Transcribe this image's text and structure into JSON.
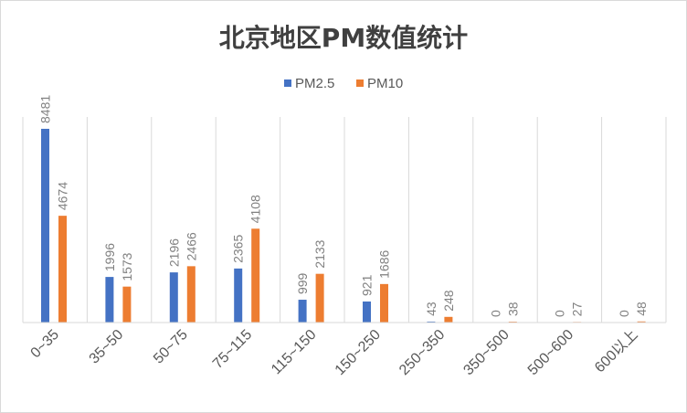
{
  "chart_data": {
    "type": "bar",
    "title": "北京地区PM数值统计",
    "categories": [
      "0~35",
      "35~50",
      "50~75",
      "75~115",
      "115~150",
      "150~250",
      "250~350",
      "350~500",
      "500~600",
      "600以上"
    ],
    "series": [
      {
        "name": "PM2.5",
        "color": "#4472C4",
        "values": [
          8481,
          1996,
          2196,
          2365,
          999,
          921,
          43,
          0,
          0,
          0
        ]
      },
      {
        "name": "PM10",
        "color": "#ED7D31",
        "values": [
          4674,
          1573,
          2466,
          4108,
          2133,
          1686,
          248,
          38,
          27,
          48
        ]
      }
    ],
    "xlabel": "",
    "ylabel": "",
    "ylim": [
      0,
      9000
    ],
    "legend": "top-center",
    "grid": "vertical category separators",
    "data_labels": true
  }
}
